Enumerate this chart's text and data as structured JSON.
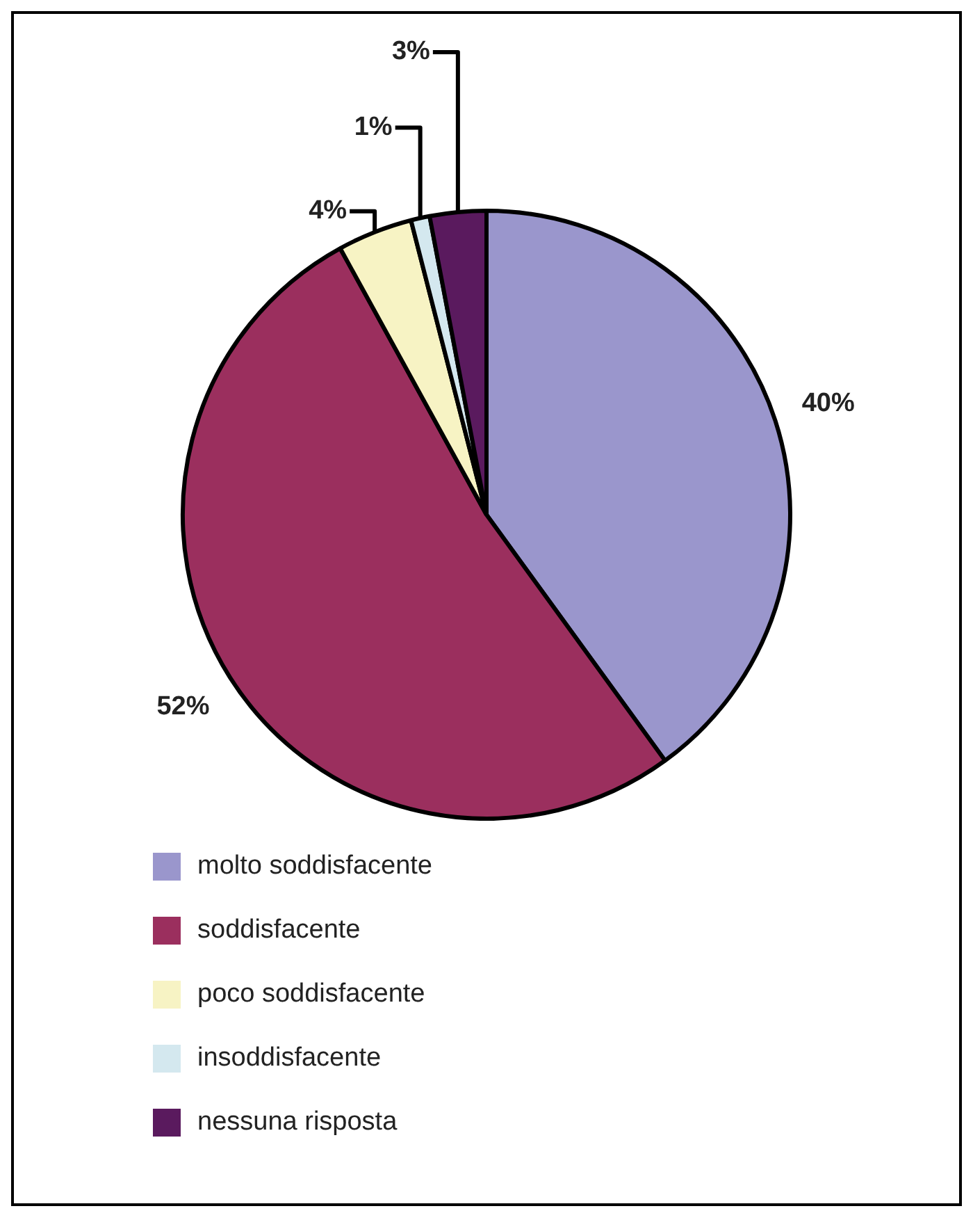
{
  "chart_data": {
    "type": "pie",
    "categories": [
      "molto soddisfacente",
      "soddisfacente",
      "poco soddisfacente",
      "insoddisfacente",
      "nessuna risposta"
    ],
    "values": [
      40,
      52,
      4,
      1,
      3
    ],
    "colors": [
      "#9a96cc",
      "#9b2f5e",
      "#f7f3c4",
      "#d4e8ef",
      "#5a1a5e"
    ],
    "value_labels": [
      "40%",
      "52%",
      "4%",
      "1%",
      "3%"
    ],
    "legend": "bottom"
  }
}
